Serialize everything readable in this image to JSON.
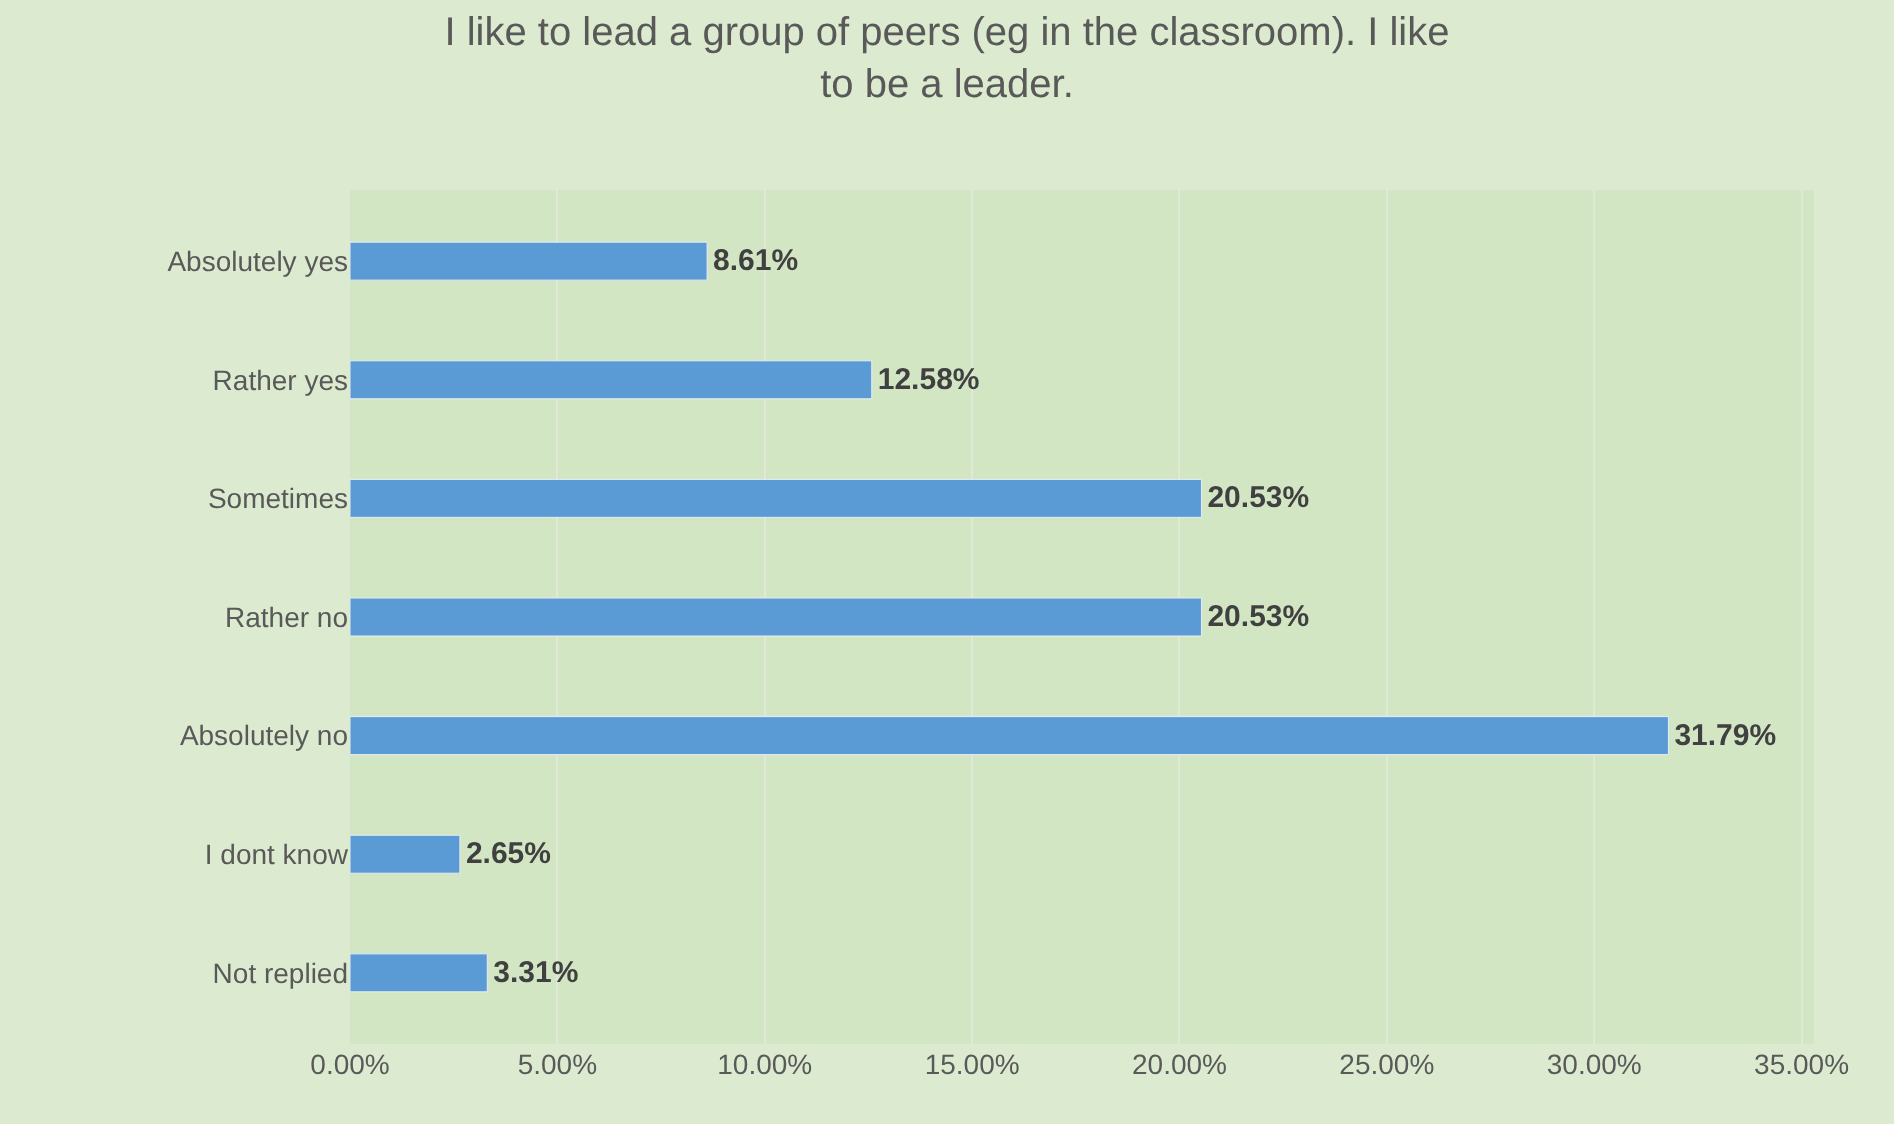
{
  "chart_data": {
    "type": "bar",
    "orientation": "horizontal",
    "title": "I like to lead a group of peers (eg in the classroom). I like\nto be a leader.",
    "categories": [
      "Absolutely yes",
      "Rather yes",
      "Sometimes",
      "Rather no",
      "Absolutely no",
      "I dont know",
      "Not replied"
    ],
    "values": [
      8.61,
      12.58,
      20.53,
      20.53,
      31.79,
      2.65,
      3.31
    ],
    "value_labels": [
      "8.61%",
      "12.58%",
      "20.53%",
      "20.53%",
      "31.79%",
      "2.65%",
      "3.31%"
    ],
    "color": "#5b9bd5",
    "xlim": [
      0,
      35.3
    ],
    "xticks": [
      {
        "value": 0,
        "label": "0.00%"
      },
      {
        "value": 5,
        "label": "5.00%"
      },
      {
        "value": 10,
        "label": "10.00%"
      },
      {
        "value": 15,
        "label": "15.00%"
      },
      {
        "value": 20,
        "label": "20.00%"
      },
      {
        "value": 25,
        "label": "25.00%"
      },
      {
        "value": 30,
        "label": "30.00%"
      },
      {
        "value": 35,
        "label": "35.00%"
      }
    ],
    "grid": "x"
  }
}
